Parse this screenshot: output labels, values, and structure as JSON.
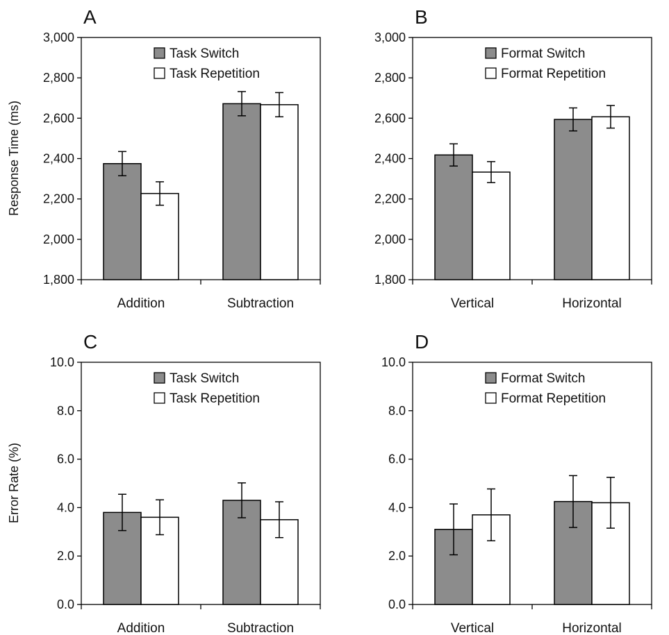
{
  "colors": {
    "switch": "#8c8c8c",
    "repetition": "#ffffff",
    "stroke": "#000000"
  },
  "chart_data": [
    {
      "panel": "A",
      "type": "bar",
      "ylabel": "Response Time (ms)",
      "ylim": [
        1800,
        3000
      ],
      "yticks": [
        "1,800",
        "2,000",
        "2,200",
        "2,400",
        "2,600",
        "2,800",
        "3,000"
      ],
      "categories": [
        "Addition",
        "Subtraction"
      ],
      "legend_position": "top-center",
      "series": [
        {
          "name": "Task Switch",
          "values": [
            2375,
            2672
          ],
          "errors": [
            60,
            60
          ]
        },
        {
          "name": "Task Repetition",
          "values": [
            2227,
            2667
          ],
          "errors": [
            58,
            60
          ]
        }
      ]
    },
    {
      "panel": "B",
      "type": "bar",
      "ylabel": "",
      "ylim": [
        1800,
        3000
      ],
      "yticks": [
        "1,800",
        "2,000",
        "2,200",
        "2,400",
        "2,600",
        "2,800",
        "3,000"
      ],
      "categories": [
        "Vertical",
        "Horizontal"
      ],
      "legend_position": "top-center",
      "series": [
        {
          "name": "Format Switch",
          "values": [
            2418,
            2594
          ],
          "errors": [
            55,
            57
          ]
        },
        {
          "name": "Format Repetition",
          "values": [
            2333,
            2607
          ],
          "errors": [
            52,
            56
          ]
        }
      ]
    },
    {
      "panel": "C",
      "type": "bar",
      "ylabel": "Error Rate (%)",
      "ylim": [
        0,
        10
      ],
      "yticks": [
        "0.0",
        "2.0",
        "4.0",
        "6.0",
        "8.0",
        "10.0"
      ],
      "categories": [
        "Addition",
        "Subtraction"
      ],
      "legend_position": "top-center",
      "series": [
        {
          "name": "Task Switch",
          "values": [
            3.8,
            4.3
          ],
          "errors": [
            0.75,
            0.72
          ]
        },
        {
          "name": "Task Repetition",
          "values": [
            3.6,
            3.5
          ],
          "errors": [
            0.72,
            0.74
          ]
        }
      ]
    },
    {
      "panel": "D",
      "type": "bar",
      "ylabel": "",
      "ylim": [
        0,
        10
      ],
      "yticks": [
        "0.0",
        "2.0",
        "4.0",
        "6.0",
        "8.0",
        "10.0"
      ],
      "categories": [
        "Vertical",
        "Horizontal"
      ],
      "legend_position": "top-center",
      "series": [
        {
          "name": "Format Switch",
          "values": [
            3.1,
            4.25
          ],
          "errors": [
            1.05,
            1.07
          ]
        },
        {
          "name": "Format Repetition",
          "values": [
            3.7,
            4.2
          ],
          "errors": [
            1.07,
            1.05
          ]
        }
      ]
    }
  ]
}
